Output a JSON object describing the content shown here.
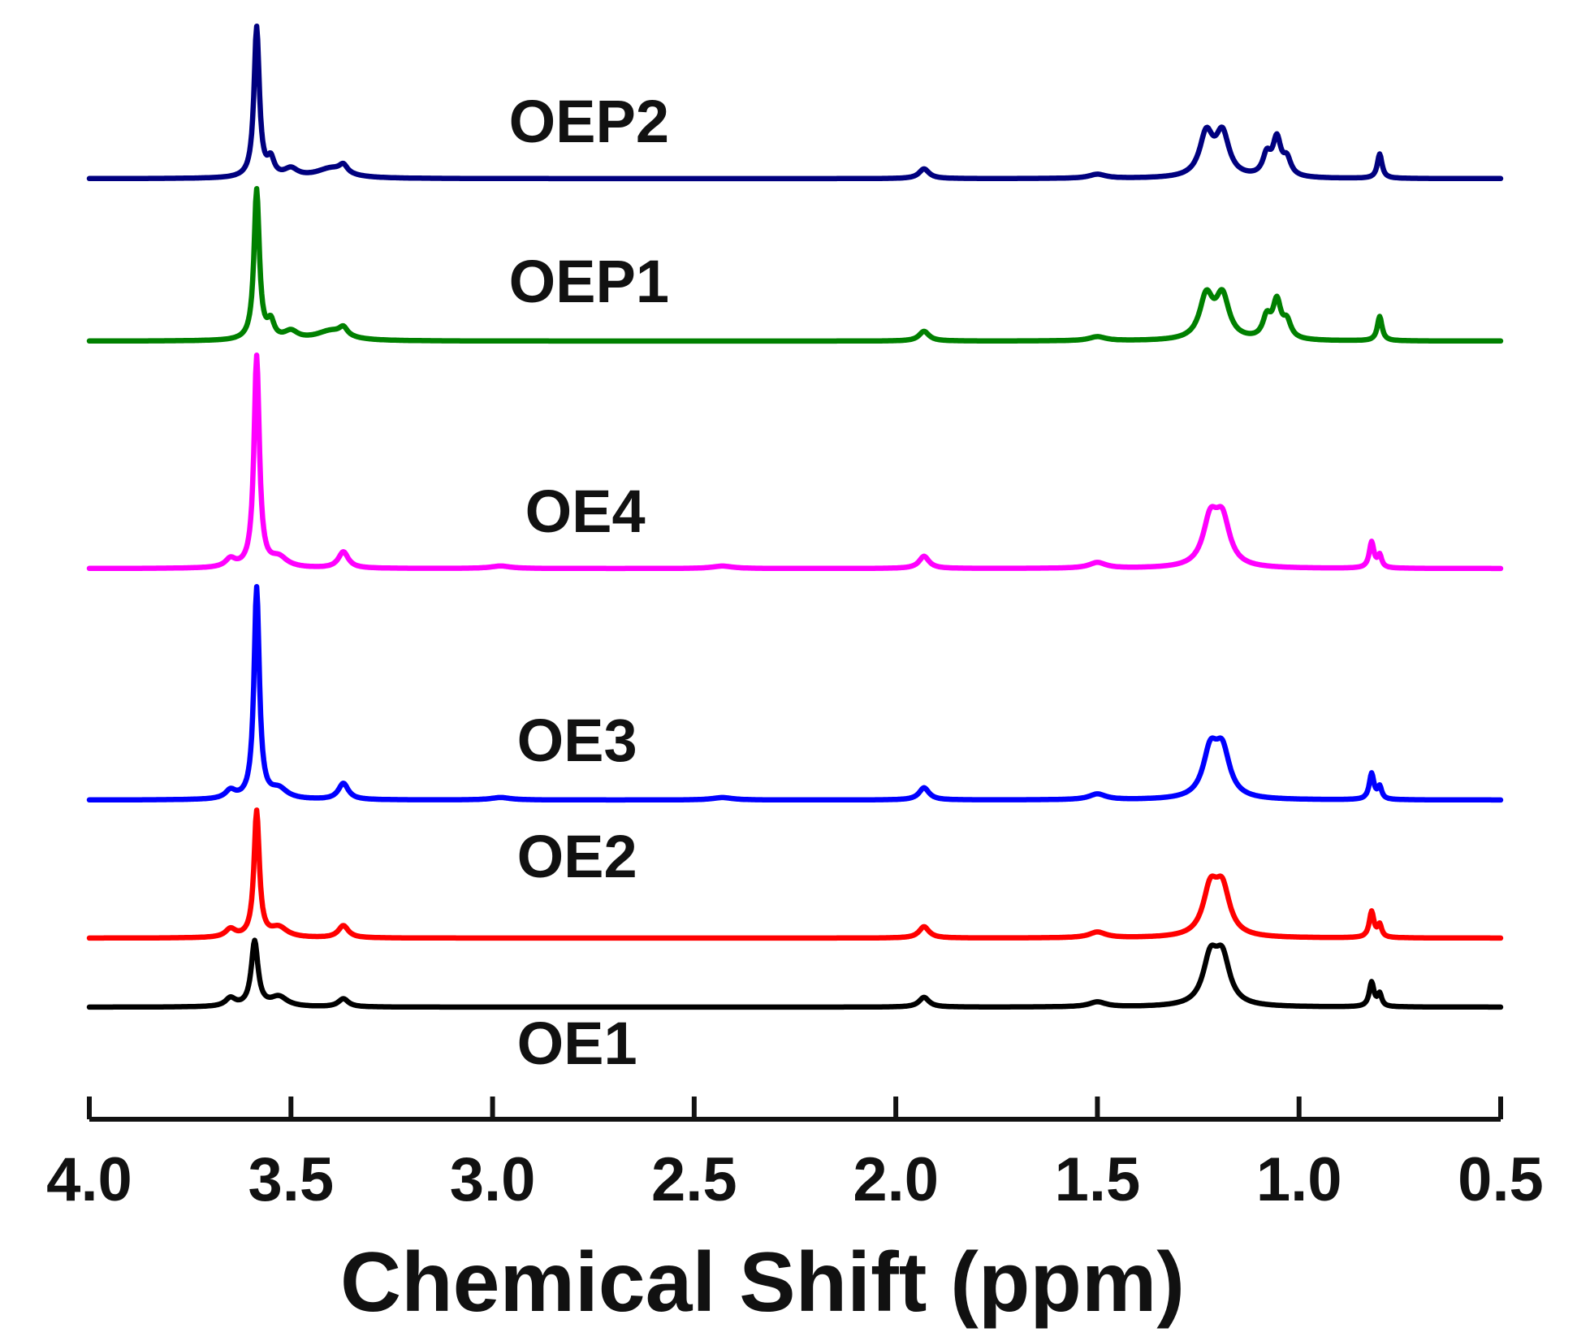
{
  "chart_data": {
    "type": "line",
    "title": "",
    "xlabel": "Chemical Shift (ppm)",
    "ylabel": "",
    "xlim": [
      4.0,
      0.5
    ],
    "x_reversed": true,
    "grid": false,
    "x_ticks": [
      4.0,
      3.5,
      3.0,
      2.5,
      2.0,
      1.5,
      1.0,
      0.5
    ],
    "x_tick_labels": [
      "4.0",
      "3.5",
      "3.0",
      "2.5",
      "2.0",
      "1.5",
      "1.0",
      "0.5"
    ],
    "y_ticks_shown": false,
    "series": [
      {
        "name": "OE1",
        "color": "#000000",
        "offset": 0,
        "peaks": [
          {
            "ppm": 3.65,
            "height": 0.1,
            "width": 0.015
          },
          {
            "ppm": 3.59,
            "height": 0.8,
            "width": 0.01
          },
          {
            "ppm": 3.53,
            "height": 0.12,
            "width": 0.025
          },
          {
            "ppm": 3.37,
            "height": 0.1,
            "width": 0.015
          },
          {
            "ppm": 1.93,
            "height": 0.12,
            "width": 0.015
          },
          {
            "ppm": 1.5,
            "height": 0.06,
            "width": 0.025
          },
          {
            "ppm": 1.22,
            "height": 0.55,
            "width": 0.022
          },
          {
            "ppm": 1.19,
            "height": 0.55,
            "width": 0.022
          },
          {
            "ppm": 0.82,
            "height": 0.3,
            "width": 0.007
          },
          {
            "ppm": 0.8,
            "height": 0.15,
            "width": 0.006
          }
        ]
      },
      {
        "name": "OE2",
        "color": "#ff0000",
        "offset": 0.85,
        "peaks": [
          {
            "ppm": 3.65,
            "height": 0.1,
            "width": 0.015
          },
          {
            "ppm": 3.585,
            "height": 1.55,
            "width": 0.008
          },
          {
            "ppm": 3.53,
            "height": 0.12,
            "width": 0.025
          },
          {
            "ppm": 3.37,
            "height": 0.15,
            "width": 0.015
          },
          {
            "ppm": 1.93,
            "height": 0.14,
            "width": 0.015
          },
          {
            "ppm": 1.5,
            "height": 0.07,
            "width": 0.025
          },
          {
            "ppm": 1.22,
            "height": 0.55,
            "width": 0.022
          },
          {
            "ppm": 1.19,
            "height": 0.55,
            "width": 0.022
          },
          {
            "ppm": 0.82,
            "height": 0.32,
            "width": 0.007
          },
          {
            "ppm": 0.8,
            "height": 0.15,
            "width": 0.006
          }
        ]
      },
      {
        "name": "OE3",
        "color": "#0000ff",
        "offset": 2.55,
        "peaks": [
          {
            "ppm": 3.65,
            "height": 0.1,
            "width": 0.015
          },
          {
            "ppm": 3.585,
            "height": 2.6,
            "width": 0.008
          },
          {
            "ppm": 3.53,
            "height": 0.12,
            "width": 0.025
          },
          {
            "ppm": 3.37,
            "height": 0.2,
            "width": 0.015
          },
          {
            "ppm": 2.98,
            "height": 0.03,
            "width": 0.03
          },
          {
            "ppm": 2.43,
            "height": 0.03,
            "width": 0.03
          },
          {
            "ppm": 1.93,
            "height": 0.15,
            "width": 0.015
          },
          {
            "ppm": 1.5,
            "height": 0.07,
            "width": 0.025
          },
          {
            "ppm": 1.22,
            "height": 0.55,
            "width": 0.022
          },
          {
            "ppm": 1.19,
            "height": 0.55,
            "width": 0.022
          },
          {
            "ppm": 0.82,
            "height": 0.32,
            "width": 0.007
          },
          {
            "ppm": 0.8,
            "height": 0.15,
            "width": 0.006
          }
        ]
      },
      {
        "name": "OE4",
        "color": "#ff00ff",
        "offset": 5.4,
        "peaks": [
          {
            "ppm": 3.65,
            "height": 0.1,
            "width": 0.015
          },
          {
            "ppm": 3.585,
            "height": 2.6,
            "width": 0.008
          },
          {
            "ppm": 3.53,
            "height": 0.12,
            "width": 0.025
          },
          {
            "ppm": 3.37,
            "height": 0.2,
            "width": 0.015
          },
          {
            "ppm": 2.98,
            "height": 0.03,
            "width": 0.03
          },
          {
            "ppm": 2.43,
            "height": 0.03,
            "width": 0.03
          },
          {
            "ppm": 1.93,
            "height": 0.15,
            "width": 0.015
          },
          {
            "ppm": 1.5,
            "height": 0.07,
            "width": 0.025
          },
          {
            "ppm": 1.22,
            "height": 0.55,
            "width": 0.022
          },
          {
            "ppm": 1.19,
            "height": 0.55,
            "width": 0.022
          },
          {
            "ppm": 0.82,
            "height": 0.32,
            "width": 0.007
          },
          {
            "ppm": 0.8,
            "height": 0.15,
            "width": 0.006
          }
        ]
      },
      {
        "name": "OEP1",
        "color": "#008000",
        "offset": 8.2,
        "peaks": [
          {
            "ppm": 3.585,
            "height": 1.85,
            "width": 0.008
          },
          {
            "ppm": 3.55,
            "height": 0.2,
            "width": 0.01
          },
          {
            "ppm": 3.5,
            "height": 0.1,
            "width": 0.02
          },
          {
            "ppm": 3.4,
            "height": 0.12,
            "width": 0.045
          },
          {
            "ppm": 3.37,
            "height": 0.1,
            "width": 0.012
          },
          {
            "ppm": 1.93,
            "height": 0.12,
            "width": 0.015
          },
          {
            "ppm": 1.5,
            "height": 0.05,
            "width": 0.025
          },
          {
            "ppm": 1.23,
            "height": 0.52,
            "width": 0.02
          },
          {
            "ppm": 1.19,
            "height": 0.52,
            "width": 0.02
          },
          {
            "ppm": 1.08,
            "height": 0.25,
            "width": 0.012
          },
          {
            "ppm": 1.055,
            "height": 0.45,
            "width": 0.012
          },
          {
            "ppm": 1.03,
            "height": 0.2,
            "width": 0.012
          },
          {
            "ppm": 0.8,
            "height": 0.3,
            "width": 0.007
          }
        ]
      },
      {
        "name": "OEP2",
        "color": "#00007f",
        "offset": 10.2,
        "peaks": [
          {
            "ppm": 3.585,
            "height": 1.85,
            "width": 0.008
          },
          {
            "ppm": 3.55,
            "height": 0.2,
            "width": 0.01
          },
          {
            "ppm": 3.5,
            "height": 0.1,
            "width": 0.02
          },
          {
            "ppm": 3.4,
            "height": 0.12,
            "width": 0.045
          },
          {
            "ppm": 3.37,
            "height": 0.1,
            "width": 0.012
          },
          {
            "ppm": 1.93,
            "height": 0.12,
            "width": 0.015
          },
          {
            "ppm": 1.5,
            "height": 0.05,
            "width": 0.025
          },
          {
            "ppm": 1.23,
            "height": 0.52,
            "width": 0.02
          },
          {
            "ppm": 1.19,
            "height": 0.52,
            "width": 0.02
          },
          {
            "ppm": 1.08,
            "height": 0.25,
            "width": 0.012
          },
          {
            "ppm": 1.055,
            "height": 0.45,
            "width": 0.012
          },
          {
            "ppm": 1.03,
            "height": 0.2,
            "width": 0.012
          },
          {
            "ppm": 0.8,
            "height": 0.3,
            "width": 0.007
          }
        ]
      }
    ]
  }
}
